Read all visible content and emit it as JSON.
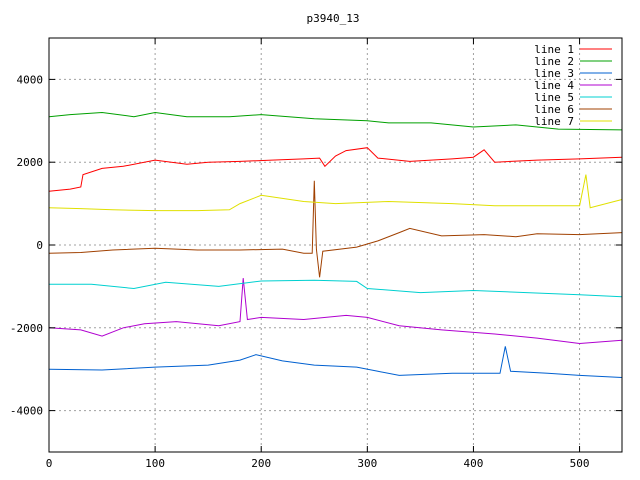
{
  "chart_data": {
    "type": "line",
    "title": "p3940_13",
    "xlabel": "",
    "ylabel": "",
    "xlim": [
      0,
      540
    ],
    "ylim": [
      -5000,
      5000
    ],
    "xticks": [
      0,
      100,
      200,
      300,
      400,
      500
    ],
    "yticks": [
      -4000,
      -2000,
      0,
      2000,
      4000
    ],
    "grid": true,
    "legend_position": "top-right",
    "series": [
      {
        "name": "line 1",
        "color": "#ff0000",
        "points": [
          [
            0,
            1300
          ],
          [
            20,
            1350
          ],
          [
            30,
            1400
          ],
          [
            32,
            1700
          ],
          [
            50,
            1850
          ],
          [
            70,
            1900
          ],
          [
            100,
            2050
          ],
          [
            130,
            1950
          ],
          [
            150,
            2000
          ],
          [
            180,
            2020
          ],
          [
            210,
            2050
          ],
          [
            240,
            2080
          ],
          [
            255,
            2100
          ],
          [
            260,
            1900
          ],
          [
            270,
            2150
          ],
          [
            280,
            2280
          ],
          [
            300,
            2350
          ],
          [
            310,
            2100
          ],
          [
            340,
            2020
          ],
          [
            380,
            2080
          ],
          [
            400,
            2120
          ],
          [
            410,
            2300
          ],
          [
            420,
            2000
          ],
          [
            460,
            2050
          ],
          [
            500,
            2080
          ],
          [
            540,
            2120
          ]
        ]
      },
      {
        "name": "line 2",
        "color": "#00a000",
        "points": [
          [
            0,
            3100
          ],
          [
            20,
            3150
          ],
          [
            50,
            3200
          ],
          [
            80,
            3100
          ],
          [
            100,
            3200
          ],
          [
            130,
            3100
          ],
          [
            170,
            3100
          ],
          [
            200,
            3150
          ],
          [
            250,
            3050
          ],
          [
            300,
            3000
          ],
          [
            320,
            2950
          ],
          [
            360,
            2950
          ],
          [
            400,
            2850
          ],
          [
            440,
            2900
          ],
          [
            480,
            2800
          ],
          [
            540,
            2780
          ]
        ]
      },
      {
        "name": "line 3",
        "color": "#0060d0",
        "points": [
          [
            0,
            -3000
          ],
          [
            50,
            -3020
          ],
          [
            100,
            -2950
          ],
          [
            150,
            -2900
          ],
          [
            180,
            -2780
          ],
          [
            195,
            -2650
          ],
          [
            220,
            -2800
          ],
          [
            250,
            -2900
          ],
          [
            290,
            -2950
          ],
          [
            310,
            -3050
          ],
          [
            330,
            -3150
          ],
          [
            380,
            -3100
          ],
          [
            425,
            -3100
          ],
          [
            430,
            -2450
          ],
          [
            435,
            -3050
          ],
          [
            470,
            -3100
          ],
          [
            500,
            -3150
          ],
          [
            540,
            -3200
          ]
        ]
      },
      {
        "name": "line 4",
        "color": "#b000d0",
        "points": [
          [
            0,
            -2000
          ],
          [
            30,
            -2050
          ],
          [
            50,
            -2200
          ],
          [
            70,
            -2000
          ],
          [
            90,
            -1900
          ],
          [
            120,
            -1850
          ],
          [
            160,
            -1950
          ],
          [
            180,
            -1850
          ],
          [
            183,
            -800
          ],
          [
            187,
            -1800
          ],
          [
            200,
            -1750
          ],
          [
            240,
            -1800
          ],
          [
            280,
            -1700
          ],
          [
            300,
            -1750
          ],
          [
            330,
            -1950
          ],
          [
            370,
            -2050
          ],
          [
            420,
            -2150
          ],
          [
            460,
            -2250
          ],
          [
            500,
            -2380
          ],
          [
            540,
            -2300
          ]
        ]
      },
      {
        "name": "line 5",
        "color": "#00d0d0",
        "points": [
          [
            0,
            -950
          ],
          [
            40,
            -950
          ],
          [
            80,
            -1050
          ],
          [
            110,
            -900
          ],
          [
            160,
            -1000
          ],
          [
            200,
            -870
          ],
          [
            250,
            -850
          ],
          [
            290,
            -880
          ],
          [
            300,
            -1050
          ],
          [
            350,
            -1150
          ],
          [
            400,
            -1100
          ],
          [
            450,
            -1150
          ],
          [
            500,
            -1200
          ],
          [
            540,
            -1250
          ]
        ]
      },
      {
        "name": "line 6",
        "color": "#a04000",
        "points": [
          [
            0,
            -200
          ],
          [
            30,
            -180
          ],
          [
            60,
            -120
          ],
          [
            100,
            -80
          ],
          [
            140,
            -120
          ],
          [
            180,
            -120
          ],
          [
            220,
            -100
          ],
          [
            240,
            -200
          ],
          [
            248,
            -200
          ],
          [
            250,
            1550
          ],
          [
            252,
            -100
          ],
          [
            255,
            -780
          ],
          [
            258,
            -150
          ],
          [
            290,
            -50
          ],
          [
            310,
            100
          ],
          [
            330,
            300
          ],
          [
            340,
            400
          ],
          [
            370,
            220
          ],
          [
            410,
            250
          ],
          [
            440,
            200
          ],
          [
            460,
            270
          ],
          [
            500,
            250
          ],
          [
            540,
            300
          ]
        ]
      },
      {
        "name": "line 7",
        "color": "#e0e000",
        "points": [
          [
            0,
            900
          ],
          [
            30,
            880
          ],
          [
            60,
            850
          ],
          [
            100,
            830
          ],
          [
            140,
            830
          ],
          [
            170,
            850
          ],
          [
            180,
            1000
          ],
          [
            200,
            1200
          ],
          [
            240,
            1050
          ],
          [
            270,
            1000
          ],
          [
            320,
            1050
          ],
          [
            380,
            1000
          ],
          [
            420,
            950
          ],
          [
            460,
            950
          ],
          [
            500,
            950
          ],
          [
            506,
            1700
          ],
          [
            510,
            900
          ],
          [
            540,
            1100
          ]
        ]
      }
    ]
  }
}
